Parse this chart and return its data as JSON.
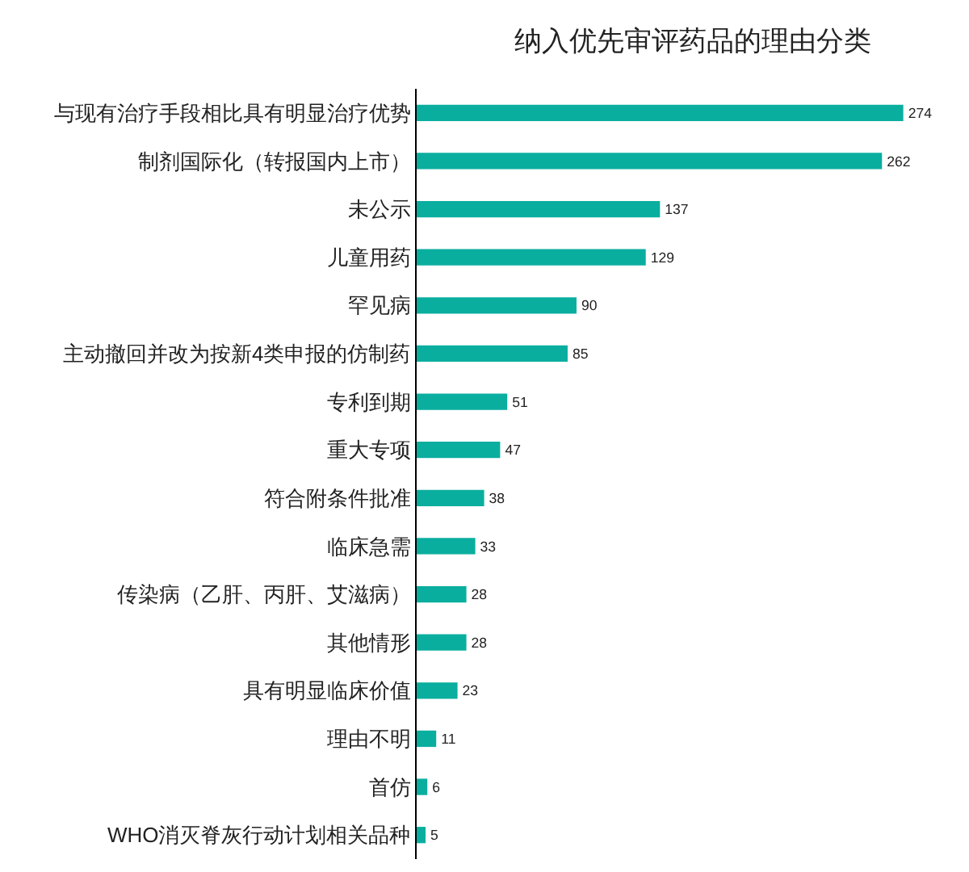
{
  "chart_data": {
    "type": "bar",
    "title": "纳入优先审评药品的理由分类",
    "orientation": "horizontal",
    "categories": [
      "与现有治疗手段相比具有明显治疗优势",
      "制剂国际化（转报国内上市）",
      "未公示",
      "儿童用药",
      "罕见病",
      "主动撤回并改为按新4类申报的仿制药",
      "专利到期",
      "重大专项",
      "符合附条件批准",
      "临床急需",
      "传染病（乙肝、丙肝、艾滋病）",
      "其他情形",
      "具有明显临床价值",
      "理由不明",
      "首仿",
      "WHO消灭脊灰行动计划相关品种"
    ],
    "values": [
      274,
      262,
      137,
      129,
      90,
      85,
      51,
      47,
      38,
      33,
      28,
      28,
      23,
      11,
      6,
      5
    ],
    "color": "#0aae9f",
    "data_labels": true,
    "tick_labels": "y"
  }
}
